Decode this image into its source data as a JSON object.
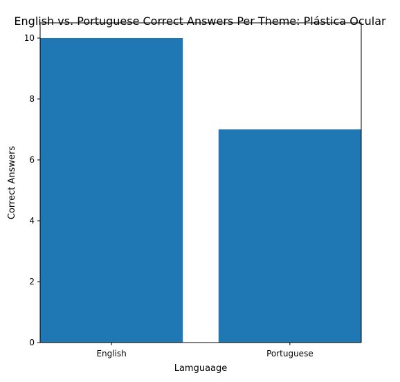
{
  "chart_data": {
    "type": "bar",
    "title": "English vs. Portuguese Correct Answers Per Theme: Plástica Ocular",
    "xlabel": "Lamguaage",
    "ylabel": "Correct Answers",
    "categories": [
      "English",
      "Portuguese"
    ],
    "values": [
      10,
      7
    ],
    "ylim": [
      0,
      10.5
    ],
    "yticks": [
      0,
      2,
      4,
      6,
      8,
      10
    ],
    "bar_color": "#1f77b4",
    "grid": false,
    "legend": false
  }
}
